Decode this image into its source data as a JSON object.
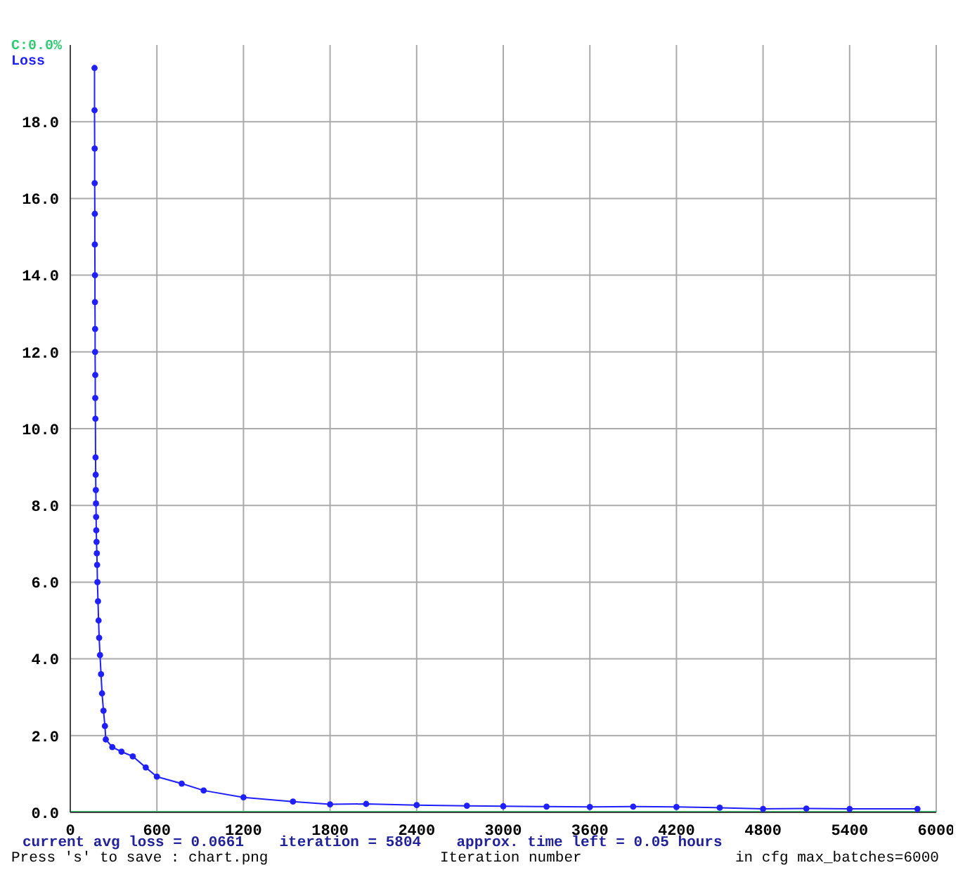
{
  "chart_data": {
    "type": "line",
    "xlabel": "Iteration number",
    "annotations": [
      "current avg loss = 0.0661",
      "iteration = 5804",
      "approx. time left = 0.05 hours",
      "Press 's' to save : chart.png",
      "in cfg max_batches=6000"
    ],
    "series": [
      {
        "name": "C:0.0%",
        "color": "#2ecc71",
        "x": [
          0,
          6000
        ],
        "values": [
          0,
          0
        ],
        "marker": "none"
      },
      {
        "name": "Loss",
        "color": "#1f1fff",
        "marker": "circle",
        "x": [
          168,
          168,
          169,
          169,
          170,
          170,
          171,
          171,
          172,
          172,
          173,
          173,
          174,
          175,
          176,
          177,
          178,
          179,
          180,
          182,
          184,
          186,
          188,
          192,
          196,
          200,
          206,
          213,
          220,
          230,
          240,
          246,
          291,
          355,
          433,
          523,
          600,
          772,
          924,
          1200,
          1543,
          1800,
          2050,
          2400,
          2748,
          3000,
          3300,
          3600,
          3900,
          4200,
          4500,
          4800,
          5100,
          5400,
          5870
        ],
        "values": [
          19.4,
          18.3,
          17.3,
          16.4,
          15.6,
          14.8,
          14.0,
          13.3,
          12.6,
          12.0,
          11.4,
          10.8,
          10.26,
          9.25,
          8.8,
          8.4,
          8.05,
          7.7,
          7.35,
          7.05,
          6.75,
          6.45,
          6.0,
          5.5,
          5.0,
          4.55,
          4.1,
          3.6,
          3.1,
          2.65,
          2.25,
          1.9,
          1.7,
          1.58,
          1.46,
          1.17,
          0.93,
          0.75,
          0.57,
          0.39,
          0.28,
          0.21,
          0.22,
          0.19,
          0.17,
          0.16,
          0.15,
          0.14,
          0.15,
          0.14,
          0.12,
          0.09,
          0.1,
          0.09,
          0.09
        ]
      }
    ],
    "xlim": [
      0,
      6000
    ],
    "xticks": [
      0,
      600,
      1200,
      1800,
      2400,
      3000,
      3600,
      4200,
      4800,
      5400,
      6000
    ],
    "ylim": [
      0,
      20
    ],
    "yticks": [
      {
        "value": 0,
        "label": "0.0"
      },
      {
        "value": 2,
        "label": "2.0"
      },
      {
        "value": 4,
        "label": "4.0"
      },
      {
        "value": 6,
        "label": "6.0"
      },
      {
        "value": 8,
        "label": "8.0"
      },
      {
        "value": 10,
        "label": "10.0"
      },
      {
        "value": 12,
        "label": "12.0"
      },
      {
        "value": 14,
        "label": "14.0"
      },
      {
        "value": 16,
        "label": "16.0"
      },
      {
        "value": 18,
        "label": "18.0"
      }
    ],
    "grid": true,
    "legend": "top left"
  }
}
